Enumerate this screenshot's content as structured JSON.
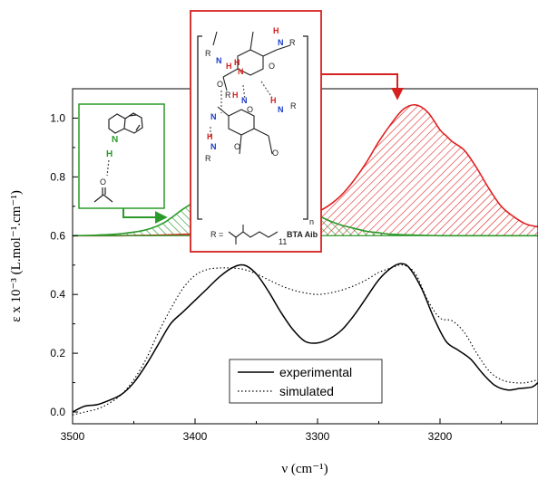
{
  "chart_data": {
    "type": "line",
    "xlabel": "ν (cm⁻¹)",
    "ylabel": "ε x 10⁻³ (L.mol⁻¹.cm⁻¹)",
    "xlim": [
      3500,
      3120
    ],
    "ylim": [
      -0.04,
      1.1
    ],
    "x_reversed": true,
    "x_ticks": [
      3500,
      3400,
      3300,
      3200
    ],
    "y_ticks": [
      0.0,
      0.2,
      0.4,
      0.6,
      0.8,
      1.0
    ],
    "x_tick_labels": [
      "3500",
      "3400",
      "3300",
      "3200"
    ],
    "y_tick_labels": [
      "0.0",
      "0.2",
      "0.4",
      "0.6",
      "0.8",
      "1.0"
    ],
    "legend": {
      "position": "bottom-center",
      "entries": [
        "experimental",
        "simulated"
      ]
    },
    "series": [
      {
        "name": "experimental",
        "style": "solid",
        "color": "#000000",
        "x": [
          3500,
          3490,
          3480,
          3470,
          3460,
          3450,
          3440,
          3430,
          3420,
          3410,
          3400,
          3390,
          3380,
          3370,
          3360,
          3350,
          3340,
          3330,
          3320,
          3310,
          3300,
          3290,
          3280,
          3270,
          3260,
          3250,
          3240,
          3232,
          3225,
          3215,
          3205,
          3195,
          3185,
          3175,
          3165,
          3155,
          3145,
          3135,
          3125,
          3120
        ],
        "values": [
          0.0,
          0.02,
          0.025,
          0.04,
          0.06,
          0.1,
          0.16,
          0.23,
          0.3,
          0.34,
          0.38,
          0.42,
          0.46,
          0.49,
          0.5,
          0.47,
          0.41,
          0.34,
          0.28,
          0.24,
          0.235,
          0.25,
          0.28,
          0.33,
          0.39,
          0.45,
          0.49,
          0.505,
          0.49,
          0.42,
          0.32,
          0.24,
          0.21,
          0.18,
          0.13,
          0.09,
          0.075,
          0.08,
          0.085,
          0.1
        ]
      },
      {
        "name": "simulated",
        "style": "dotted",
        "color": "#000000",
        "x": [
          3500,
          3490,
          3480,
          3470,
          3460,
          3450,
          3440,
          3430,
          3420,
          3410,
          3400,
          3390,
          3380,
          3370,
          3360,
          3350,
          3340,
          3330,
          3320,
          3310,
          3300,
          3290,
          3280,
          3270,
          3260,
          3250,
          3240,
          3230,
          3220,
          3210,
          3200,
          3190,
          3180,
          3170,
          3160,
          3150,
          3140,
          3130,
          3120
        ],
        "values": [
          -0.01,
          0.0,
          0.01,
          0.03,
          0.06,
          0.11,
          0.18,
          0.27,
          0.35,
          0.42,
          0.465,
          0.485,
          0.49,
          0.49,
          0.485,
          0.47,
          0.45,
          0.43,
          0.415,
          0.405,
          0.4,
          0.405,
          0.415,
          0.43,
          0.45,
          0.475,
          0.49,
          0.5,
          0.47,
          0.38,
          0.32,
          0.31,
          0.27,
          0.2,
          0.14,
          0.11,
          0.1,
          0.1,
          0.11
        ]
      },
      {
        "name": "BTA Aib",
        "style": "hatched-fill",
        "color": "#e02020",
        "x": [
          3500,
          3460,
          3420,
          3380,
          3350,
          3330,
          3310,
          3300,
          3290,
          3280,
          3270,
          3260,
          3250,
          3240,
          3230,
          3220,
          3210,
          3200,
          3195,
          3190,
          3180,
          3170,
          3160,
          3150,
          3140,
          3130,
          3120
        ],
        "values": [
          0.6,
          0.6,
          0.603,
          0.61,
          0.62,
          0.635,
          0.66,
          0.68,
          0.705,
          0.74,
          0.79,
          0.85,
          0.92,
          0.98,
          1.03,
          1.045,
          1.02,
          0.96,
          0.94,
          0.92,
          0.89,
          0.83,
          0.76,
          0.7,
          0.665,
          0.64,
          0.63
        ]
      },
      {
        "name": "indole",
        "style": "hatched-fill",
        "color": "#2a9a2a",
        "x": [
          3500,
          3480,
          3460,
          3440,
          3425,
          3410,
          3400,
          3390,
          3380,
          3370,
          3360,
          3350,
          3340,
          3330,
          3320,
          3310,
          3300,
          3290,
          3280,
          3270,
          3260,
          3250,
          3240,
          3220,
          3200,
          3180,
          3160,
          3140,
          3120
        ],
        "values": [
          0.6,
          0.602,
          0.607,
          0.62,
          0.645,
          0.69,
          0.715,
          0.735,
          0.75,
          0.755,
          0.755,
          0.75,
          0.74,
          0.725,
          0.71,
          0.69,
          0.67,
          0.65,
          0.635,
          0.625,
          0.615,
          0.61,
          0.605,
          0.602,
          0.6,
          0.6,
          0.6,
          0.6,
          0.6
        ]
      }
    ]
  },
  "insets": {
    "bta": {
      "border_color": "#d62020",
      "r_label": "R =",
      "subscript_n": "n",
      "subscript_11": "11",
      "compound_name": "BTA Aib",
      "atoms": [
        "H",
        "N",
        "R",
        "O"
      ]
    },
    "indole": {
      "border_color": "#2a9a2a",
      "atoms": [
        "N",
        "H",
        "O"
      ]
    }
  }
}
